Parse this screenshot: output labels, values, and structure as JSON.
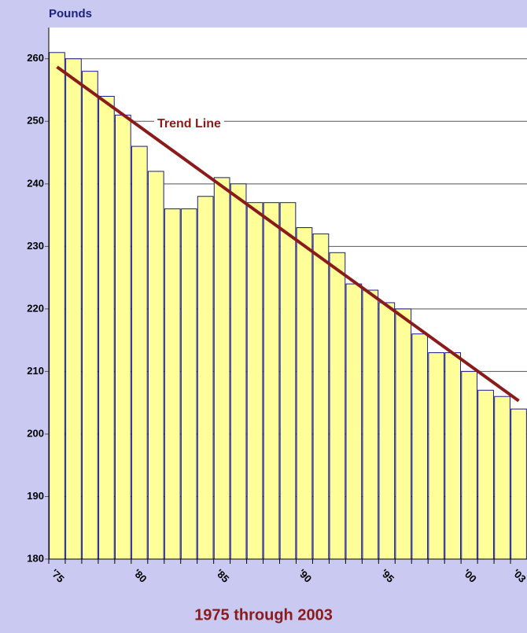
{
  "chart_data": {
    "type": "bar",
    "y_axis_label": "Pounds",
    "x_axis_label": "1975 through 2003",
    "categories": [
      "'75",
      null,
      null,
      null,
      null,
      "'80",
      null,
      null,
      null,
      null,
      "'85",
      null,
      null,
      null,
      null,
      "'90",
      null,
      null,
      null,
      null,
      "'95",
      null,
      null,
      null,
      null,
      "'00",
      null,
      null,
      "'03"
    ],
    "values": [
      261,
      260,
      258,
      254,
      251,
      246,
      242,
      236,
      236,
      238,
      241,
      240,
      237,
      237,
      237,
      233,
      232,
      229,
      224,
      223,
      221,
      220,
      216,
      213,
      213,
      210,
      207,
      206,
      204
    ],
    "color": "#ffff99",
    "ylim": [
      180,
      265
    ],
    "yticks": [
      180,
      190,
      200,
      210,
      220,
      230,
      240,
      250,
      260
    ],
    "grid": true,
    "trend_line": {
      "label": "Trend Line",
      "start": 258.7,
      "end": 205.3,
      "color": "#8b1a1a"
    }
  }
}
